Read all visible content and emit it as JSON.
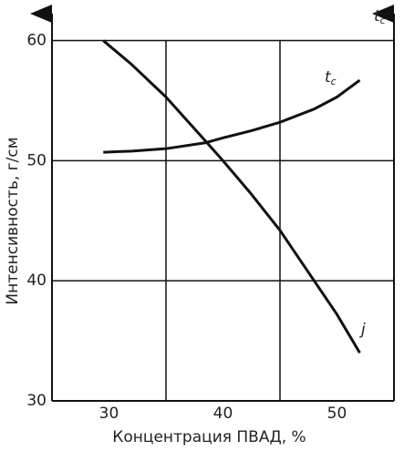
{
  "chart_data": {
    "type": "line",
    "x_label": "Концентрация ПВАД, %",
    "y_label": "Интенсивность, г/см",
    "y2_label": {
      "main": "t",
      "sub": "c"
    },
    "xlim": [
      25,
      55
    ],
    "xticks": [
      30,
      40,
      50
    ],
    "xgrid": [
      35,
      45
    ],
    "ylim": [
      30,
      63
    ],
    "yticks": [
      30,
      40,
      50,
      60
    ],
    "ygrid": [
      40,
      50,
      60
    ],
    "color": "#111111",
    "series": [
      {
        "name": "j",
        "x": [
          29.5,
          32,
          35,
          38.5,
          40,
          42.5,
          45,
          48,
          50,
          52
        ],
        "values": [
          60,
          58,
          55.3,
          51.6,
          50,
          47.2,
          44.2,
          40,
          37.2,
          34
        ]
      },
      {
        "name": "t",
        "name_sub": "c",
        "x": [
          29.5,
          32,
          35,
          38.5,
          40,
          42.5,
          45,
          48,
          50,
          52
        ],
        "values": [
          50.7,
          50.8,
          51,
          51.5,
          51.9,
          52.5,
          53.2,
          54.3,
          55.3,
          56.7
        ]
      }
    ]
  }
}
